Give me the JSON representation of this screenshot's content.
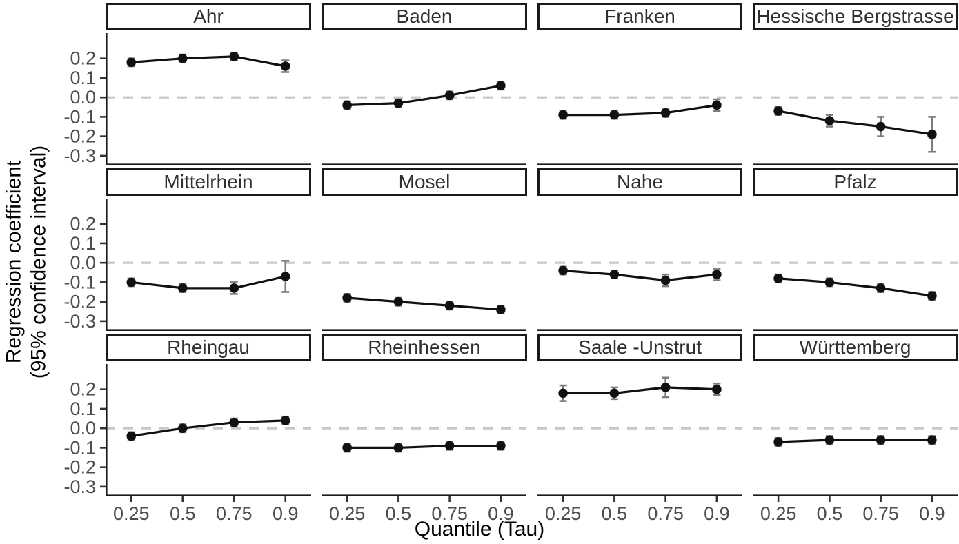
{
  "chart_data": {
    "type": "line",
    "title": "",
    "xlabel": "Quantile (Tau)",
    "ylabel": "Regression coefficient\n(95% confidence interval)",
    "x": [
      0.25,
      0.5,
      0.75,
      0.9
    ],
    "x_tick_labels": [
      "0.25",
      "0.5",
      "0.75",
      "0.9"
    ],
    "y_ticks": [
      0.2,
      0.1,
      0.0,
      -0.1,
      -0.2,
      -0.3
    ],
    "y_tick_labels": [
      "0.2",
      "0.1",
      "0.0",
      "-0.1",
      "-0.2",
      "-0.3"
    ],
    "ylim": [
      -0.35,
      0.33
    ],
    "zero_reference_line": 0,
    "layout": {
      "rows": 3,
      "cols": 4,
      "grid": "off",
      "legend": "none",
      "zero_line_style": "dashed"
    },
    "facets": [
      {
        "label": "Ahr",
        "values": [
          0.18,
          0.2,
          0.21,
          0.16
        ],
        "ci_half_width": [
          0.02,
          0.02,
          0.02,
          0.03
        ]
      },
      {
        "label": "Baden",
        "values": [
          -0.04,
          -0.03,
          0.01,
          0.06
        ],
        "ci_half_width": [
          0.02,
          0.02,
          0.02,
          0.02
        ]
      },
      {
        "label": "Franken",
        "values": [
          -0.09,
          -0.09,
          -0.08,
          -0.04
        ],
        "ci_half_width": [
          0.02,
          0.02,
          0.02,
          0.03
        ]
      },
      {
        "label": "Hessische Bergstrasse",
        "values": [
          -0.07,
          -0.12,
          -0.15,
          -0.19
        ],
        "ci_half_width": [
          0.02,
          0.03,
          0.05,
          0.09
        ]
      },
      {
        "label": "Mittelrhein",
        "values": [
          -0.1,
          -0.13,
          -0.13,
          -0.07
        ],
        "ci_half_width": [
          0.02,
          0.02,
          0.03,
          0.08
        ]
      },
      {
        "label": "Mosel",
        "values": [
          -0.18,
          -0.2,
          -0.22,
          -0.24
        ],
        "ci_half_width": [
          0.02,
          0.02,
          0.02,
          0.02
        ]
      },
      {
        "label": "Nahe",
        "values": [
          -0.04,
          -0.06,
          -0.09,
          -0.06
        ],
        "ci_half_width": [
          0.02,
          0.02,
          0.03,
          0.03
        ]
      },
      {
        "label": "Pfalz",
        "values": [
          -0.08,
          -0.1,
          -0.13,
          -0.17
        ],
        "ci_half_width": [
          0.02,
          0.02,
          0.02,
          0.02
        ]
      },
      {
        "label": "Rheingau",
        "values": [
          -0.04,
          0.0,
          0.03,
          0.04
        ],
        "ci_half_width": [
          0.02,
          0.02,
          0.02,
          0.02
        ]
      },
      {
        "label": "Rheinhessen",
        "values": [
          -0.1,
          -0.1,
          -0.09,
          -0.09
        ],
        "ci_half_width": [
          0.02,
          0.02,
          0.02,
          0.02
        ]
      },
      {
        "label": "Saale -Unstrut",
        "values": [
          0.18,
          0.18,
          0.21,
          0.2
        ],
        "ci_half_width": [
          0.04,
          0.03,
          0.05,
          0.03
        ]
      },
      {
        "label": "Württemberg",
        "values": [
          -0.07,
          -0.06,
          -0.06,
          -0.06
        ],
        "ci_half_width": [
          0.02,
          0.02,
          0.02,
          0.02
        ]
      }
    ]
  },
  "colors": {
    "point_line": "#111111",
    "error_bar": "#7d7d7d",
    "zero_line": "#c7c7c7",
    "axis_line": "#1a1a1a",
    "tick_mark": "#333333",
    "tick_label": "#4d4d4d",
    "strip_text": "#303030",
    "strip_border": "#1a1a1a",
    "background": "#ffffff"
  }
}
